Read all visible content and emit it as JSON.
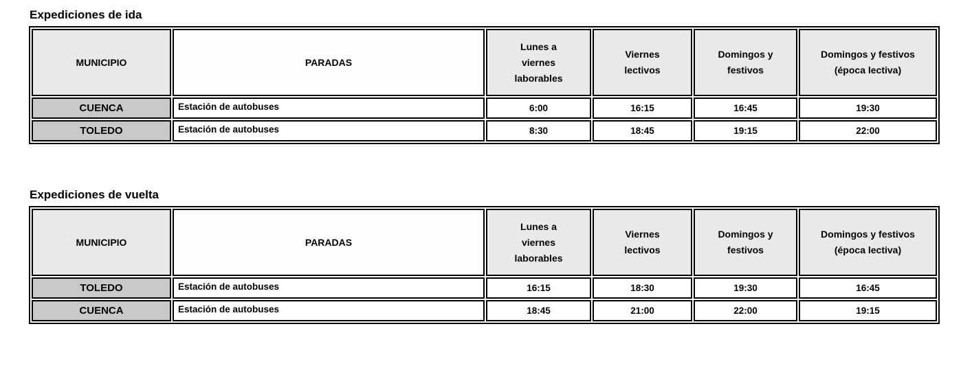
{
  "colors": {
    "page_background": "#ffffff",
    "header_cell_bg": "#e9e9e9",
    "paradas_header_bg": "#fdfdfd",
    "municipio_cell_bg": "#c9c9c9",
    "border": "#000000",
    "text": "#000000"
  },
  "document": {
    "tables": [
      {
        "title": "Expediciones de ida",
        "columns": [
          "MUNICIPIO",
          "PARADAS",
          "Lunes a viernes laborables",
          "Viernes lectivos",
          "Domingos y festivos",
          "Domingos y festivos (época lectiva)"
        ],
        "rows": [
          {
            "municipio": "CUENCA",
            "parada": "Estación de autobuses",
            "times": [
              "6:00",
              "16:15",
              "16:45",
              "19:30"
            ]
          },
          {
            "municipio": "TOLEDO",
            "parada": "Estación de autobuses",
            "times": [
              "8:30",
              "18:45",
              "19:15",
              "22:00"
            ]
          }
        ]
      },
      {
        "title": "Expediciones de vuelta",
        "columns": [
          "MUNICIPIO",
          "PARADAS",
          "Lunes a viernes laborables",
          "Viernes lectivos",
          "Domingos y festivos",
          "Domingos y festivos (época lectiva)"
        ],
        "rows": [
          {
            "municipio": "TOLEDO",
            "parada": "Estación de autobuses",
            "times": [
              "16:15",
              "18:30",
              "19:30",
              "16:45"
            ]
          },
          {
            "municipio": "CUENCA",
            "parada": "Estación de autobuses",
            "times": [
              "18:45",
              "21:00",
              "22:00",
              "19:15"
            ]
          }
        ]
      }
    ]
  }
}
